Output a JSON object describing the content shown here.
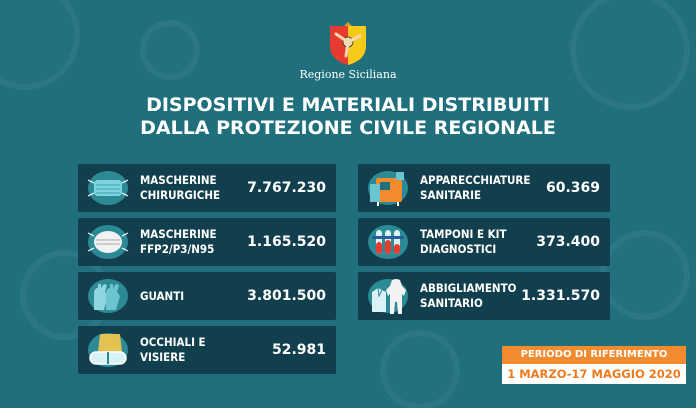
{
  "header": {
    "region_name": "Regione Siciliana"
  },
  "title": {
    "line1": "DISPOSITIVI E MATERIALI DISTRIBUITI",
    "line2": "DALLA PROTEZIONE CIVILE REGIONALE"
  },
  "items": [
    {
      "label1": "MASCHERINE",
      "label2": "CHIRURGICHE",
      "value": "7.767.230",
      "icon": "surgical-mask-icon"
    },
    {
      "label1": "MASCHERINE",
      "label2": "FFP2/P3/N95",
      "value": "1.165.520",
      "icon": "ffp2-mask-icon"
    },
    {
      "label1": "GUANTI",
      "label2": "",
      "value": "3.801.500",
      "icon": "gloves-icon"
    },
    {
      "label1": "OCCHIALI E",
      "label2": "VISIERE",
      "value": "52.981",
      "icon": "goggles-icon"
    },
    {
      "label1": "APPARECCHIATURE",
      "label2": "SANITARIE",
      "value": "60.369",
      "icon": "medical-equipment-icon"
    },
    {
      "label1": "TAMPONI E KIT",
      "label2": "DIAGNOSTICI",
      "value": "373.400",
      "icon": "test-tubes-icon"
    },
    {
      "label1": "ABBIGLIAMENTO",
      "label2": "SANITARIO",
      "value": "1.331.570",
      "icon": "protective-clothing-icon"
    }
  ],
  "period": {
    "label": "PERIODO DI RIFERIMENTO",
    "dates": "1 MARZO-17 MAGGIO 2020"
  },
  "colors": {
    "background": "#1f6f7c",
    "card": "#123f4d",
    "accent": "#f28a2e"
  }
}
